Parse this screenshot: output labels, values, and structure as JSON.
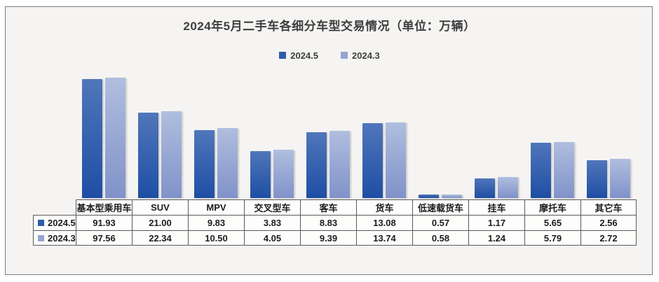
{
  "chart_data": {
    "type": "bar",
    "title": "2024年5月二手车各细分车型交易情况（单位：万辆）",
    "unit": "万辆",
    "yscale": "log",
    "grid": false,
    "legend_position": "top",
    "categories": [
      "基本型乘用车",
      "SUV",
      "MPV",
      "交叉型车",
      "客车",
      "货车",
      "低速载货车",
      "挂车",
      "摩托车",
      "其它车"
    ],
    "series": [
      {
        "name": "2024.5",
        "values": [
          91.93,
          21.0,
          9.83,
          3.83,
          8.83,
          13.08,
          0.57,
          1.17,
          5.65,
          2.56
        ]
      },
      {
        "name": "2024.3",
        "values": [
          97.56,
          22.34,
          10.5,
          4.05,
          9.39,
          13.74,
          0.58,
          1.24,
          5.79,
          2.72
        ]
      }
    ],
    "value_format": "0.00"
  },
  "colors": {
    "series": [
      {
        "name": "2024.5",
        "legend": "#2F5BA7",
        "gradient_top": "#5076BA",
        "gradient_bottom": "#1E4EA4"
      },
      {
        "name": "2024.3",
        "legend": "#96A5D1",
        "gradient_top": "#B0BEDE",
        "gradient_bottom": "#8092C9"
      }
    ],
    "panel_bg": "#F5F4F2",
    "panel_border": "#7C7C7C",
    "table_border": "#5A5A5A",
    "cell_bg": "#FDFDFC",
    "title_text": "#3E3E3E",
    "table_text": "#1C1C1C"
  }
}
